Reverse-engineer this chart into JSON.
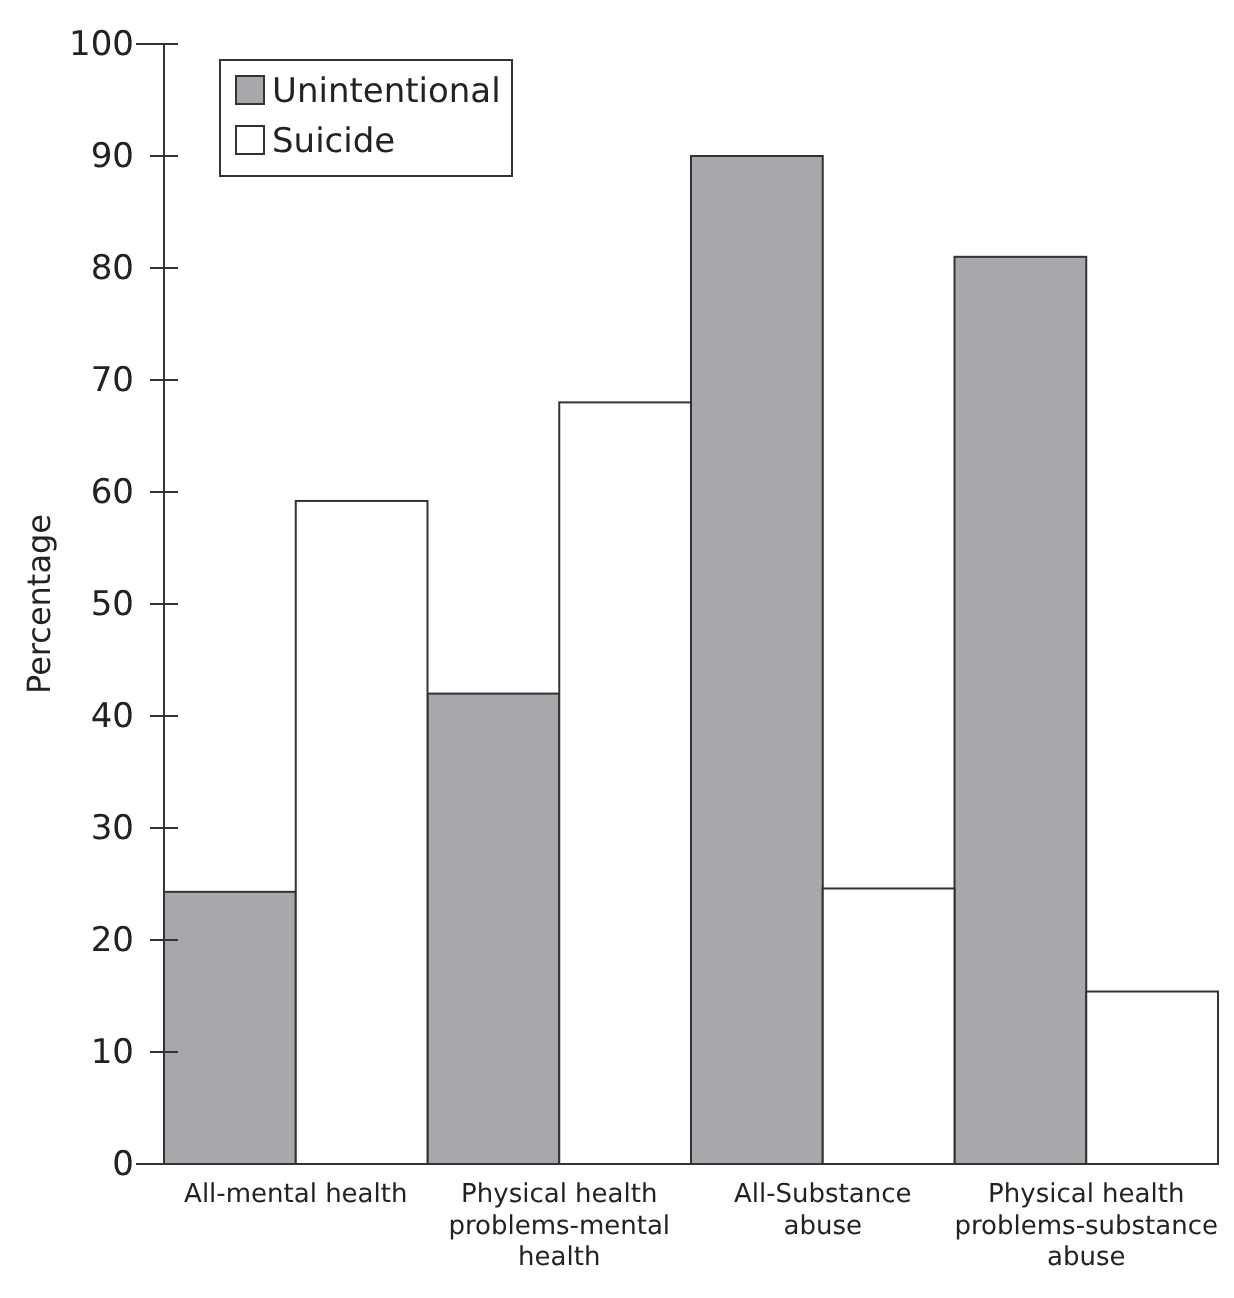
{
  "chart_data": {
    "type": "bar",
    "ylabel": "Percentage",
    "categories": [
      "All-mental health",
      "Physical health problems-mental health",
      "All-Substance abuse",
      "Physical health problems-substance abuse"
    ],
    "series": [
      {
        "name": "Unintentional",
        "color": "#a7a8ab",
        "values": [
          24.3,
          42,
          90,
          81
        ]
      },
      {
        "name": "Suicide",
        "color": "#ffffff",
        "values": [
          59.2,
          68,
          24.6,
          15.4
        ]
      }
    ],
    "ylim": [
      0,
      100
    ],
    "yticks": [
      0,
      10,
      20,
      30,
      40,
      50,
      60,
      70,
      80,
      90,
      100
    ],
    "legend": "top left",
    "grid": false
  }
}
